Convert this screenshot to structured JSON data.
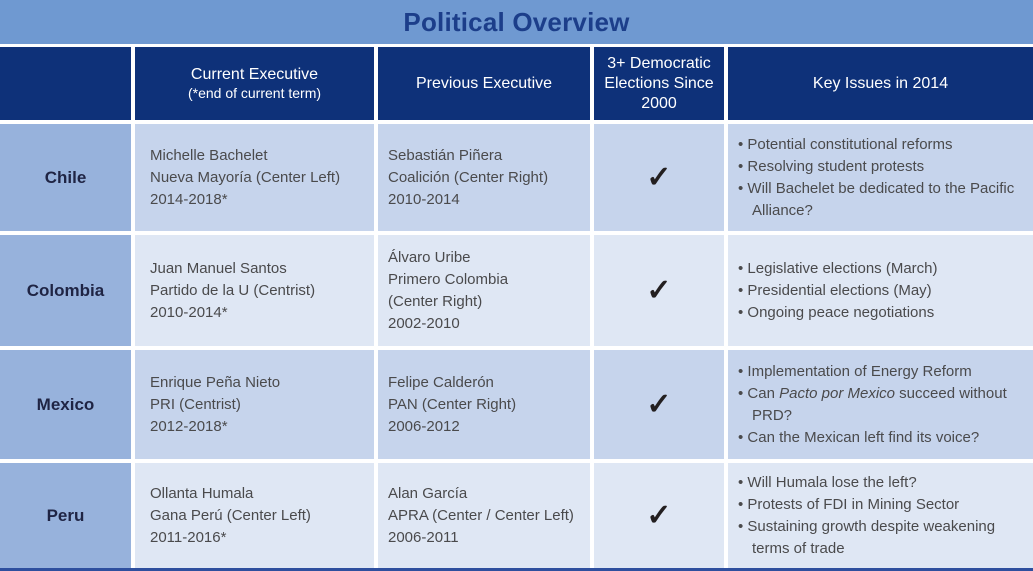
{
  "title": "Political Overview",
  "colors": {
    "title_bar": "#6f99d1",
    "title_text": "#1c3e8a",
    "header_bg": "#0e3179",
    "header_text": "#ffffff",
    "country_bg": "#97b2dc",
    "row_dark_bg": "#c6d4ec",
    "row_light_bg": "#dfe7f4",
    "bottom_bar": "#2e4f9e",
    "body_text": "#4a4a4c",
    "check_color": "#231f20"
  },
  "header": {
    "current_line1": "Current Executive",
    "current_line2": "(*end of current term)",
    "previous": "Previous Executive",
    "elections": "3+ Democratic Elections Since 2000",
    "key_issues": "Key Issues in 2014"
  },
  "rows": [
    {
      "country": "Chile",
      "current": [
        "Michelle Bachelet",
        "Nueva Mayoría (Center Left)",
        "2014-2018*"
      ],
      "previous": [
        "Sebastián Piñera",
        "Coalición (Center Right)",
        "2010-2014"
      ],
      "democratic_elections_check": "✓",
      "issues": [
        "Potential constitutional reforms",
        "Resolving student protests",
        "Will Bachelet be dedicated to the Pacific Alliance?"
      ]
    },
    {
      "country": "Colombia",
      "current": [
        "Juan Manuel Santos",
        "Partido de la U (Centrist)",
        "2010-2014*"
      ],
      "previous": [
        "Álvaro Uribe",
        "Primero Colombia",
        "(Center Right)",
        "2002-2010"
      ],
      "democratic_elections_check": "✓",
      "issues": [
        "Legislative elections (March)",
        "Presidential elections (May)",
        "Ongoing peace negotiations"
      ]
    },
    {
      "country": "Mexico",
      "current": [
        "Enrique Peña Nieto",
        "PRI (Centrist)",
        "2012-2018*"
      ],
      "previous": [
        "Felipe Calderón",
        "PAN (Center Right)",
        "2006-2012"
      ],
      "democratic_elections_check": "✓",
      "issues": [
        "Implementation of Energy Reform",
        {
          "prefix": "Can ",
          "italic": "Pacto por Mexico",
          "suffix": " succeed without PRD?"
        },
        "Can the Mexican left find its voice?"
      ]
    },
    {
      "country": "Peru",
      "current": [
        "Ollanta Humala",
        "Gana Perú (Center Left)",
        "2011-2016*"
      ],
      "previous": [
        "Alan García",
        "APRA (Center / Center Left)",
        "2006-2011"
      ],
      "democratic_elections_check": "✓",
      "issues": [
        "Will Humala lose the left?",
        "Protests of FDI in Mining Sector",
        "Sustaining growth despite weakening terms of trade"
      ]
    }
  ]
}
